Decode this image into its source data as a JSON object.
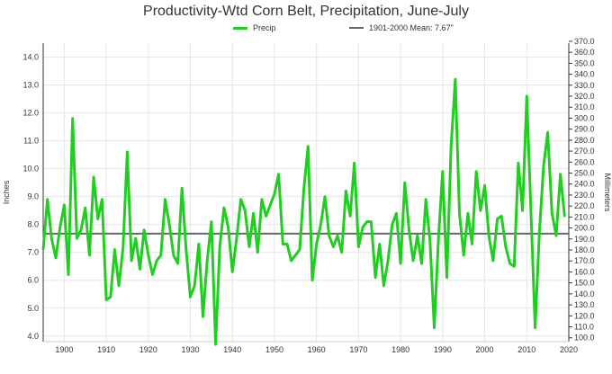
{
  "chart_data": {
    "type": "line",
    "title": "Productivity-Wtd Corn Belt, Precipitation, June-July",
    "ylabel": "Inches",
    "ylabel_right": "Millimeters",
    "x_ticks": [
      "1900",
      "1910",
      "1920",
      "1930",
      "1940",
      "1950",
      "1960",
      "1970",
      "1980",
      "1990",
      "2000",
      "2010",
      "2020"
    ],
    "y_ticks": [
      "4.0",
      "5.0",
      "6.0",
      "7.0",
      "8.0",
      "9.0",
      "10.0",
      "11.0",
      "12.0",
      "13.0",
      "14.0"
    ],
    "y_right_ticks": [
      "100.0",
      "110.0",
      "120.0",
      "130.0",
      "140.0",
      "150.0",
      "160.0",
      "170.0",
      "180.0",
      "190.0",
      "200.0",
      "210.0",
      "220.0",
      "230.0",
      "240.0",
      "250.0",
      "260.0",
      "270.0",
      "280.0",
      "290.0",
      "300.0",
      "310.0",
      "320.0",
      "330.0",
      "340.0",
      "350.0",
      "360.0",
      "370.0"
    ],
    "xlim": [
      1895,
      2020
    ],
    "ylim": [
      3.8,
      14.5
    ],
    "grid": true,
    "legend_placement": "top",
    "series": [
      {
        "name": "Precip",
        "color": "#22cc22",
        "x": [
          1895,
          1896,
          1897,
          1898,
          1899,
          1900,
          1901,
          1902,
          1903,
          1904,
          1905,
          1906,
          1907,
          1908,
          1909,
          1910,
          1911,
          1912,
          1913,
          1914,
          1915,
          1916,
          1917,
          1918,
          1919,
          1920,
          1921,
          1922,
          1923,
          1924,
          1925,
          1926,
          1927,
          1928,
          1929,
          1930,
          1931,
          1932,
          1933,
          1934,
          1935,
          1936,
          1937,
          1938,
          1939,
          1940,
          1941,
          1942,
          1943,
          1944,
          1945,
          1946,
          1947,
          1948,
          1949,
          1950,
          1951,
          1952,
          1953,
          1954,
          1955,
          1956,
          1957,
          1958,
          1959,
          1960,
          1961,
          1962,
          1963,
          1964,
          1965,
          1966,
          1967,
          1968,
          1969,
          1970,
          1971,
          1972,
          1973,
          1974,
          1975,
          1976,
          1977,
          1978,
          1979,
          1980,
          1981,
          1982,
          1983,
          1984,
          1985,
          1986,
          1987,
          1988,
          1989,
          1990,
          1991,
          1992,
          1993,
          1994,
          1995,
          1996,
          1997,
          1998,
          1999,
          2000,
          2001,
          2002,
          2003,
          2004,
          2005,
          2006,
          2007,
          2008,
          2009,
          2010,
          2011,
          2012,
          2013,
          2014,
          2015,
          2016,
          2017,
          2018,
          2019
        ],
        "values": [
          7.1,
          8.9,
          7.5,
          6.8,
          7.9,
          8.7,
          6.2,
          11.8,
          7.5,
          7.8,
          8.6,
          6.9,
          9.7,
          8.2,
          8.9,
          5.3,
          5.4,
          7.1,
          5.8,
          7.2,
          10.6,
          6.7,
          7.5,
          6.4,
          7.8,
          6.9,
          6.2,
          6.7,
          6.9,
          8.9,
          8.0,
          6.9,
          6.6,
          9.3,
          7.1,
          5.4,
          5.8,
          7.3,
          4.7,
          6.7,
          8.1,
          3.7,
          7.2,
          8.6,
          7.9,
          6.3,
          7.5,
          8.9,
          8.5,
          7.2,
          8.4,
          7.0,
          8.9,
          8.3,
          8.7,
          9.1,
          9.8,
          7.3,
          7.3,
          6.7,
          6.9,
          7.1,
          9.3,
          10.8,
          6.0,
          7.3,
          8.0,
          9.0,
          7.6,
          7.2,
          7.6,
          7.0,
          9.2,
          8.3,
          10.2,
          7.2,
          7.9,
          8.1,
          8.1,
          6.1,
          7.3,
          5.8,
          6.7,
          8.0,
          8.4,
          6.6,
          9.5,
          7.8,
          6.7,
          7.6,
          6.6,
          8.9,
          7.4,
          4.3,
          7.5,
          9.9,
          6.1,
          10.8,
          13.2,
          8.4,
          6.9,
          8.4,
          7.3,
          9.9,
          8.5,
          9.4,
          7.6,
          6.7,
          8.2,
          8.3,
          7.2,
          6.6,
          6.5,
          10.2,
          8.5,
          12.6,
          8.4,
          4.3,
          7.7,
          10.1,
          11.3,
          8.4,
          7.6,
          9.8,
          8.3
        ]
      },
      {
        "name": "1901-2000 Mean: 7.67\"",
        "color": "#666666",
        "mean_value": 7.67
      }
    ]
  }
}
